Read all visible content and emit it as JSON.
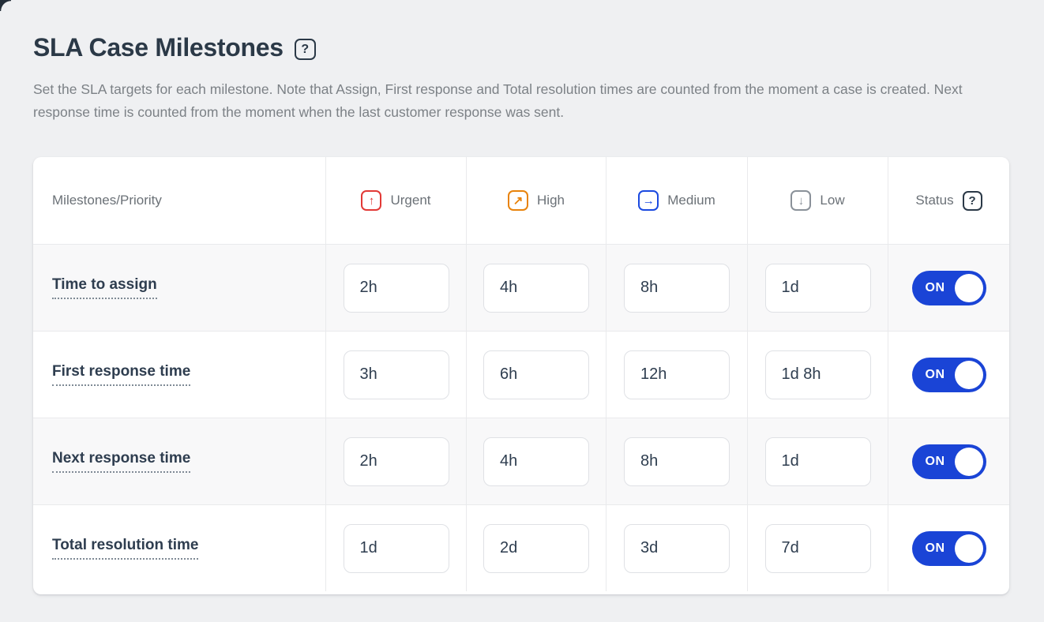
{
  "page": {
    "title": "SLA Case Milestones",
    "description": "Set the SLA targets for each milestone. Note that Assign, First response and Total resolution times are counted from the moment a case is created. Next response time is counted from the moment when the last customer response was sent.",
    "help_glyph": "?"
  },
  "table": {
    "columns": [
      {
        "label": "Milestones/Priority"
      },
      {
        "label": "Urgent",
        "icon": "arrow-up-icon",
        "glyph": "↑",
        "color": "#e23936"
      },
      {
        "label": "High",
        "icon": "arrow-up-right-icon",
        "glyph": "↗",
        "color": "#e8830c"
      },
      {
        "label": "Medium",
        "icon": "arrow-right-icon",
        "glyph": "→",
        "color": "#1b4ae0"
      },
      {
        "label": "Low",
        "icon": "arrow-down-icon",
        "glyph": "↓",
        "color": "#8a9199"
      },
      {
        "label": "Status",
        "help_glyph": "?"
      }
    ],
    "rows": [
      {
        "milestone": "Time to assign",
        "urgent": "2h",
        "high": "4h",
        "medium": "8h",
        "low": "1d",
        "status": "ON"
      },
      {
        "milestone": "First response time",
        "urgent": "3h",
        "high": "6h",
        "medium": "12h",
        "low": "1d 8h",
        "status": "ON"
      },
      {
        "milestone": "Next response time",
        "urgent": "2h",
        "high": "4h",
        "medium": "8h",
        "low": "1d",
        "status": "ON"
      },
      {
        "milestone": "Total resolution time",
        "urgent": "1d",
        "high": "2d",
        "medium": "3d",
        "low": "7d",
        "status": "ON"
      }
    ]
  },
  "colors": {
    "toggle_on": "#1a44d6",
    "urgent": "#e23936",
    "high": "#e8830c",
    "medium": "#1b4ae0",
    "low": "#8a9199",
    "page_background": "#eff0f2"
  }
}
